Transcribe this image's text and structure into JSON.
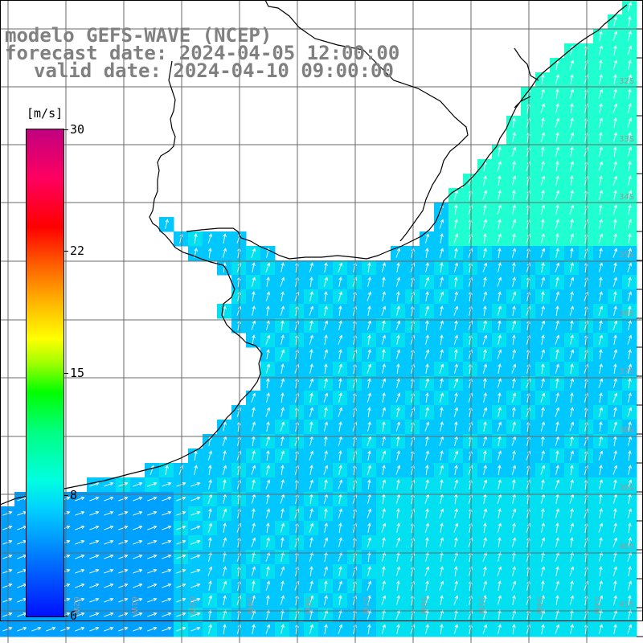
{
  "title": {
    "line1": "modelo GEFS-WAVE (NCEP)",
    "line2": "forecast date: 2024-04-05 12:00:00",
    "line3": "valid date: 2024-04-10 09:00:00"
  },
  "colorbar": {
    "unit": "[m/s]",
    "min": 0,
    "max": 30,
    "ticks": [
      "30",
      "22",
      "15",
      "8",
      "0"
    ]
  },
  "map": {
    "lat_labels": [
      "32S",
      "33S",
      "34S",
      "35S",
      "36S",
      "37S",
      "38S",
      "39S",
      "40S",
      "41S"
    ],
    "lon_labels": [
      "62W",
      "61W",
      "60W",
      "59W",
      "58W",
      "57W",
      "56W",
      "55W",
      "54W",
      "53W"
    ],
    "wind_direction": "southwest",
    "ocean_colors": [
      "#00c8ff",
      "#00e0f0",
      "#20ffd0",
      "#00a0ff"
    ],
    "land_color": "#ffffff"
  }
}
